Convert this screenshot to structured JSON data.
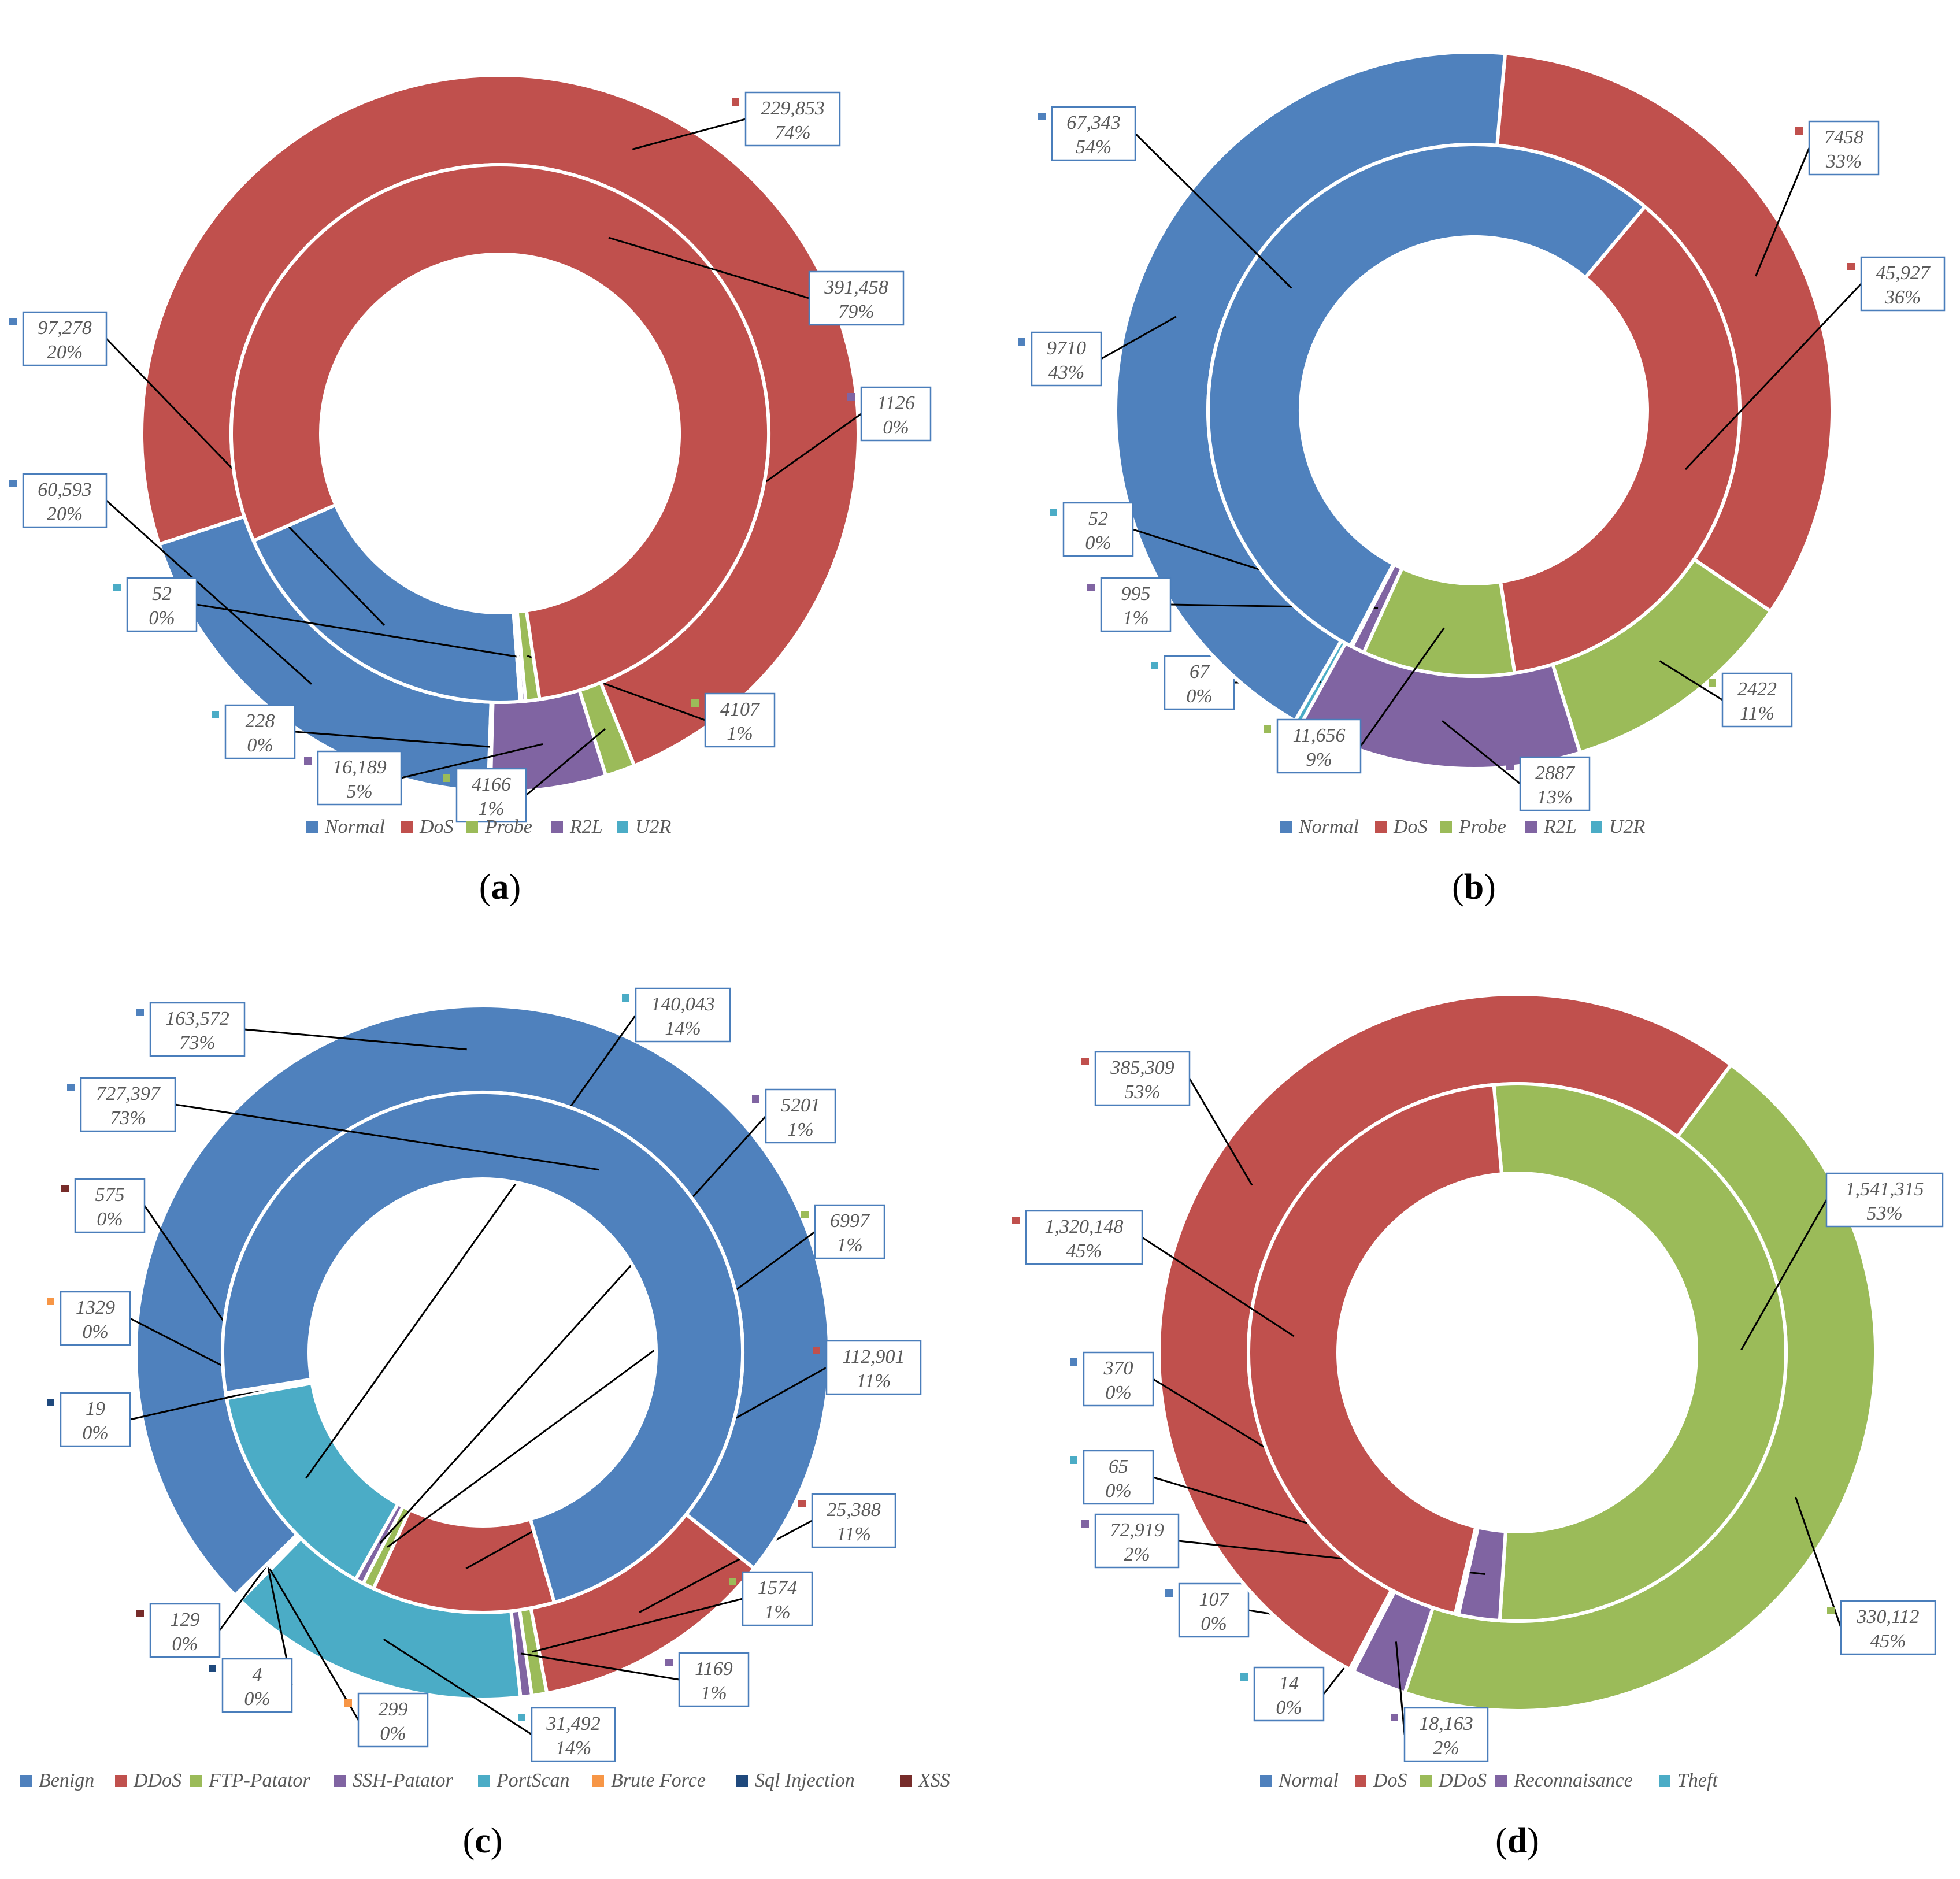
{
  "colors": {
    "blue": "#4F81BD",
    "red": "#C0504D",
    "green": "#9BBB59",
    "purple": "#8064A2",
    "teal": "#4BACC6",
    "orange": "#F79646",
    "navy": "#1F497D",
    "maroon": "#772C2A"
  },
  "chart_data": [
    {
      "id": "a",
      "type": "donut",
      "caption": "a",
      "legend": [
        {
          "label": "Normal",
          "color": "#4F81BD"
        },
        {
          "label": "DoS",
          "color": "#C0504D"
        },
        {
          "label": "Probe",
          "color": "#9BBB59"
        },
        {
          "label": "R2L",
          "color": "#8064A2"
        },
        {
          "label": "U2R",
          "color": "#4BACC6"
        }
      ],
      "rings": [
        {
          "ring": "outer",
          "slices": [
            {
              "category": "Normal",
              "value": 60593,
              "label": "60,593",
              "pct": "20%",
              "color": "#4F81BD"
            },
            {
              "category": "U2R",
              "value": 228,
              "label": "228",
              "pct": "0%",
              "color": "#4BACC6"
            },
            {
              "category": "R2L",
              "value": 16189,
              "label": "16,189",
              "pct": "5%",
              "color": "#8064A2"
            },
            {
              "category": "Probe",
              "value": 4166,
              "label": "4166",
              "pct": "1%",
              "color": "#9BBB59"
            },
            {
              "category": "DoS",
              "value": 229853,
              "label": "229,853",
              "pct": "74%",
              "color": "#C0504D"
            }
          ]
        },
        {
          "ring": "inner",
          "slices": [
            {
              "category": "Normal",
              "value": 97278,
              "label": "97,278",
              "pct": "20%",
              "color": "#4F81BD"
            },
            {
              "category": "U2R",
              "value": 52,
              "label": "52",
              "pct": "0%",
              "color": "#4BACC6"
            },
            {
              "category": "R2L",
              "value": 1126,
              "label": "1126",
              "pct": "0%",
              "color": "#8064A2"
            },
            {
              "category": "Probe",
              "value": 4107,
              "label": "4107",
              "pct": "1%",
              "color": "#9BBB59"
            },
            {
              "category": "DoS",
              "value": 391458,
              "label": "391,458",
              "pct": "79%",
              "color": "#C0504D"
            }
          ]
        }
      ]
    },
    {
      "id": "b",
      "type": "donut",
      "caption": "b",
      "legend": [
        {
          "label": "Normal",
          "color": "#4F81BD"
        },
        {
          "label": "DoS",
          "color": "#C0504D"
        },
        {
          "label": "Probe",
          "color": "#9BBB59"
        },
        {
          "label": "R2L",
          "color": "#8064A2"
        },
        {
          "label": "U2R",
          "color": "#4BACC6"
        }
      ],
      "rings": [
        {
          "ring": "outer",
          "slices": [
            {
              "category": "DoS",
              "value": 7458,
              "label": "7458",
              "pct": "33%",
              "color": "#C0504D"
            },
            {
              "category": "Probe",
              "value": 2422,
              "label": "2422",
              "pct": "11%",
              "color": "#9BBB59"
            },
            {
              "category": "R2L",
              "value": 2887,
              "label": "2887",
              "pct": "13%",
              "color": "#8064A2"
            },
            {
              "category": "U2R",
              "value": 67,
              "label": "67",
              "pct": "0%",
              "color": "#4BACC6"
            },
            {
              "category": "Normal",
              "value": 9710,
              "label": "9710",
              "pct": "43%",
              "color": "#4F81BD"
            }
          ]
        },
        {
          "ring": "inner",
          "slices": [
            {
              "category": "DoS",
              "value": 45927,
              "label": "45,927",
              "pct": "36%",
              "color": "#C0504D"
            },
            {
              "category": "Probe",
              "value": 11656,
              "label": "11,656",
              "pct": "9%",
              "color": "#9BBB59"
            },
            {
              "category": "R2L",
              "value": 995,
              "label": "995",
              "pct": "1%",
              "color": "#8064A2"
            },
            {
              "category": "U2R",
              "value": 52,
              "label": "52",
              "pct": "0%",
              "color": "#4BACC6"
            },
            {
              "category": "Normal",
              "value": 67343,
              "label": "67,343",
              "pct": "54%",
              "color": "#4F81BD"
            }
          ]
        }
      ]
    },
    {
      "id": "c",
      "type": "donut",
      "caption": "c",
      "legend": [
        {
          "label": "Benign",
          "color": "#4F81BD"
        },
        {
          "label": "DDoS",
          "color": "#C0504D"
        },
        {
          "label": "FTP-Patator",
          "color": "#9BBB59"
        },
        {
          "label": "SSH-Patator",
          "color": "#8064A2"
        },
        {
          "label": "PortScan",
          "color": "#4BACC6"
        },
        {
          "label": "Brute Force",
          "color": "#F79646"
        },
        {
          "label": "Sql Injection",
          "color": "#1F497D"
        },
        {
          "label": "XSS",
          "color": "#772C2A"
        }
      ],
      "rings": [
        {
          "ring": "outer",
          "slices": [
            {
              "category": "DDoS",
              "value": 25388,
              "label": "25,388",
              "pct": "11%",
              "color": "#C0504D"
            },
            {
              "category": "FTP-Patator",
              "value": 1574,
              "label": "1574",
              "pct": "1%",
              "color": "#9BBB59"
            },
            {
              "category": "SSH-Patator",
              "value": 1169,
              "label": "1169",
              "pct": "1%",
              "color": "#8064A2"
            },
            {
              "category": "PortScan",
              "value": 31492,
              "label": "31,492",
              "pct": "14%",
              "color": "#4BACC6"
            },
            {
              "category": "Brute Force",
              "value": 299,
              "label": "299",
              "pct": "0%",
              "color": "#F79646"
            },
            {
              "category": "Sql Injection",
              "value": 4,
              "label": "4",
              "pct": "0%",
              "color": "#1F497D"
            },
            {
              "category": "XSS",
              "value": 129,
              "label": "129",
              "pct": "0%",
              "color": "#772C2A"
            },
            {
              "category": "Benign",
              "value": 163572,
              "label": "163,572",
              "pct": "73%",
              "color": "#4F81BD"
            }
          ]
        },
        {
          "ring": "inner",
          "slices": [
            {
              "category": "DDoS",
              "value": 112901,
              "label": "112,901",
              "pct": "11%",
              "color": "#C0504D"
            },
            {
              "category": "FTP-Patator",
              "value": 6997,
              "label": "6997",
              "pct": "1%",
              "color": "#9BBB59"
            },
            {
              "category": "SSH-Patator",
              "value": 5201,
              "label": "5201",
              "pct": "1%",
              "color": "#8064A2"
            },
            {
              "category": "PortScan",
              "value": 140043,
              "label": "140,043",
              "pct": "14%",
              "color": "#4BACC6"
            },
            {
              "category": "Brute Force",
              "value": 1329,
              "label": "1329",
              "pct": "0%",
              "color": "#F79646"
            },
            {
              "category": "Sql Injection",
              "value": 19,
              "label": "19",
              "pct": "0%",
              "color": "#1F497D"
            },
            {
              "category": "XSS",
              "value": 575,
              "label": "575",
              "pct": "0%",
              "color": "#772C2A"
            },
            {
              "category": "Benign",
              "value": 727397,
              "label": "727,397",
              "pct": "73%",
              "color": "#4F81BD"
            }
          ]
        }
      ]
    },
    {
      "id": "d",
      "type": "donut",
      "caption": "d",
      "legend": [
        {
          "label": "Normal",
          "color": "#4F81BD"
        },
        {
          "label": "DoS",
          "color": "#C0504D"
        },
        {
          "label": "DDoS",
          "color": "#9BBB59"
        },
        {
          "label": "Reconnaisance",
          "color": "#8064A2"
        },
        {
          "label": "Theft",
          "color": "#4BACC6"
        }
      ],
      "rings": [
        {
          "ring": "outer",
          "slices": [
            {
              "category": "DDoS",
              "value": 330112,
              "label": "330,112",
              "pct": "45%",
              "color": "#9BBB59"
            },
            {
              "category": "Reconnaisance",
              "value": 18163,
              "label": "18,163",
              "pct": "2%",
              "color": "#8064A2"
            },
            {
              "category": "Theft",
              "value": 14,
              "label": "14",
              "pct": "0%",
              "color": "#4BACC6"
            },
            {
              "category": "Normal",
              "value": 107,
              "label": "107",
              "pct": "0%",
              "color": "#4F81BD"
            },
            {
              "category": "DoS",
              "value": 385309,
              "label": "385,309",
              "pct": "53%",
              "color": "#C0504D"
            }
          ]
        },
        {
          "ring": "inner",
          "slices": [
            {
              "category": "DDoS",
              "value": 1541315,
              "label": "1,541,315",
              "pct": "53%",
              "color": "#9BBB59"
            },
            {
              "category": "Reconnaisance",
              "value": 72919,
              "label": "72,919",
              "pct": "2%",
              "color": "#8064A2"
            },
            {
              "category": "Theft",
              "value": 65,
              "label": "65",
              "pct": "0%",
              "color": "#4BACC6"
            },
            {
              "category": "Normal",
              "value": 370,
              "label": "370",
              "pct": "0%",
              "color": "#4F81BD"
            },
            {
              "category": "DoS",
              "value": 1320148,
              "label": "1,320,148",
              "pct": "45%",
              "color": "#C0504D"
            }
          ]
        }
      ]
    }
  ]
}
